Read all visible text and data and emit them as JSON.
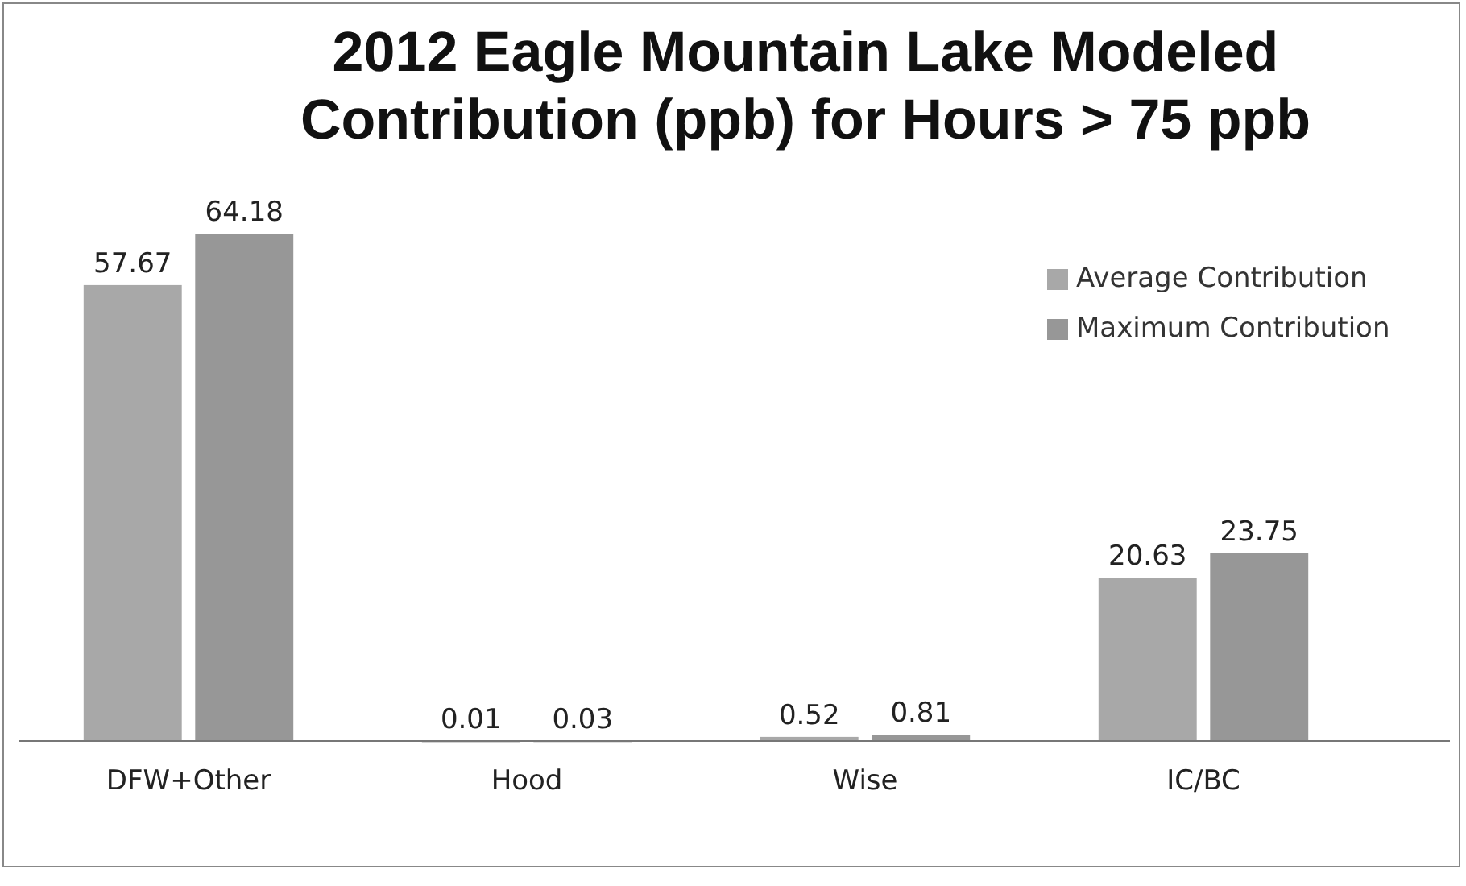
{
  "chart_data": {
    "type": "bar",
    "title": "2012 Eagle Mountain Lake Modeled Contribution (ppb) for Hours > 75 ppb",
    "categories": [
      "DFW+Other",
      "Hood",
      "Wise",
      "IC/BC"
    ],
    "series": [
      {
        "name": "Average Contribution",
        "color": "#a8a8a8",
        "values": [
          57.67,
          0.01,
          0.52,
          20.63
        ]
      },
      {
        "name": "Maximum Contribution",
        "color": "#979797",
        "values": [
          64.18,
          0.03,
          0.81,
          23.75
        ]
      }
    ],
    "relative": false,
    "data_labels": true,
    "legend": "top right",
    "grid": false
  }
}
